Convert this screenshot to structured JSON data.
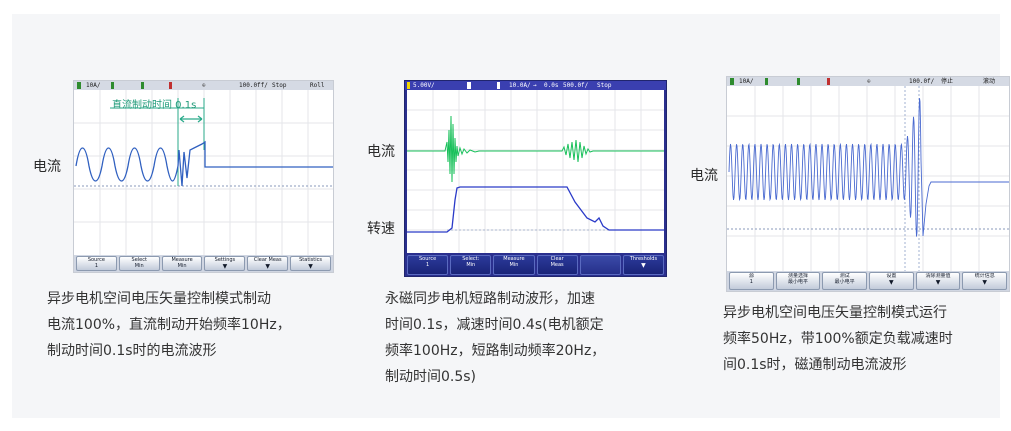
{
  "scope1": {
    "status": {
      "ch": "10A/",
      "time": "100.0ff/",
      "stop": "Stop",
      "roll": "Roll"
    },
    "annotation": "直流制动时间 0.1s",
    "channel_label": "电流",
    "softkeys": [
      {
        "line1": "Source",
        "line2": "1"
      },
      {
        "line1": "Select",
        "line2": "Min"
      },
      {
        "line1": "Measure",
        "line2": "Min"
      },
      {
        "line1": "Settings",
        "line2": ""
      },
      {
        "line1": "Clear Meas",
        "line2": ""
      },
      {
        "line1": "Statistics",
        "line2": ""
      }
    ],
    "caption": [
      "异步电机空间电压矢量控制模式制动",
      "电流100%，直流制动开始频率10Hz，",
      "制动时间0.1s时的电流波形"
    ]
  },
  "scope2": {
    "status": {
      "ch1": "5.00V/",
      "ch2": "10.0A/",
      "delay": "0.0s",
      "time": "500.0f/",
      "stop": "Stop"
    },
    "channel_labels": {
      "current": "电流",
      "speed": "转速"
    },
    "softkeys": [
      {
        "line1": "Source",
        "line2": "1"
      },
      {
        "line1": "Select:",
        "line2": "Min"
      },
      {
        "line1": "Measure",
        "line2": "Min"
      },
      {
        "line1": "Clear",
        "line2": "Meas"
      },
      {
        "line1": "",
        "line2": ""
      },
      {
        "line1": "Thresholds",
        "line2": ""
      }
    ],
    "caption": [
      "永磁同步电机短路制动波形，加速",
      "时间0.1s，减速时间0.4s(电机额定",
      "频率100Hz，短路制动频率20Hz，",
      "制动时间0.5s)"
    ]
  },
  "scope3": {
    "status": {
      "ch": "10A/",
      "time": "100.0f/",
      "stop": "停止",
      "mode": "滚动"
    },
    "channel_label": "电流",
    "softkeys": [
      {
        "line1": "源",
        "line2": "1"
      },
      {
        "line1": "测量选择",
        "line2": "最小电平"
      },
      {
        "line1": "测试",
        "line2": "最小电平"
      },
      {
        "line1": "设置",
        "line2": ""
      },
      {
        "line1": "清除测量值",
        "line2": ""
      },
      {
        "line1": "统计信息",
        "line2": ""
      }
    ],
    "caption": [
      "异步电机空间电压矢量控制模式运行",
      "频率50Hz，带100%额定负载减速时",
      "间0.1s时，磁通制动电流波形"
    ]
  }
}
